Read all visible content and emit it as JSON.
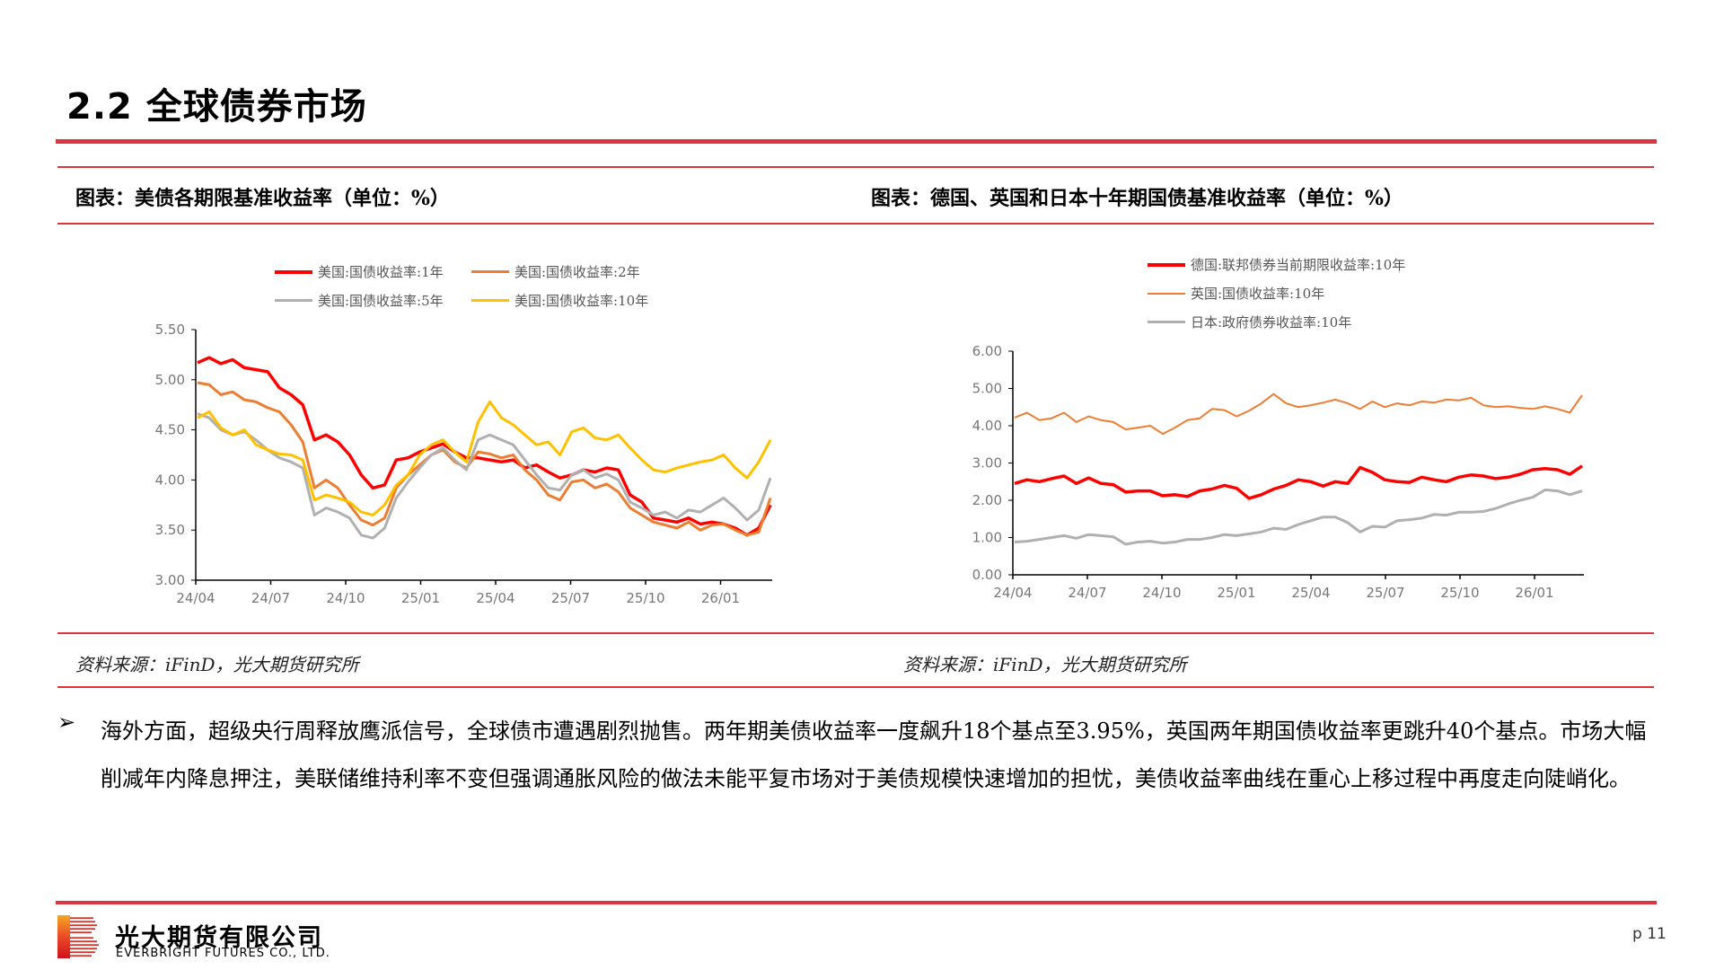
{
  "page": {
    "title": "2.2 全球债券市场",
    "page_number": "p 11",
    "accent_color": "#d9363e"
  },
  "figures": {
    "left": {
      "title": "图表：美债各期限基准收益率（单位：%）",
      "source": "资料来源：iFinD，光大期货研究所"
    },
    "right": {
      "title": "图表：德国、英国和日本十年期国债基准收益率（单位：%）",
      "source": "资料来源：iFinD，光大期货研究所"
    }
  },
  "body": {
    "bullet_icon": "➢",
    "paragraph": "海外方面，超级央行周释放鹰派信号，全球债市遭遇剧烈抛售。两年期美债收益率一度飙升18个基点至3.95%，英国两年期国债收益率更跳升40个基点。市场大幅削减年内降息押注，美联储维持利率不变但强调通胀风险的做法未能平复市场对于美债规模快速增加的担忧，美债收益率曲线在重心上移过程中再度走向陡峭化。"
  },
  "footer": {
    "company_cn": "光大期货有限公司",
    "company_en": "EVERBRIGHT FUTURES CO., LTD."
  },
  "chart_data": [
    {
      "type": "line",
      "title": "美债各期限基准收益率（单位：%）",
      "xlabel": "",
      "ylabel": "",
      "ylim": [
        3.0,
        5.5
      ],
      "yticks": [
        "3.00",
        "3.50",
        "4.00",
        "4.50",
        "5.00",
        "5.50"
      ],
      "xticks": [
        "24/04",
        "24/07",
        "24/10",
        "25/01",
        "25/04",
        "25/07",
        "25/10",
        "26/01"
      ],
      "grid": false,
      "legend_position": "top",
      "x_positions_note": "points spaced ~half-month from 24/04 to 26/03",
      "series": [
        {
          "name": "美国:国债收益率:1年",
          "color": "#ff0000",
          "values": [
            5.17,
            5.22,
            5.16,
            5.2,
            5.12,
            5.1,
            5.08,
            4.92,
            4.85,
            4.75,
            4.4,
            4.45,
            4.38,
            4.25,
            4.05,
            3.92,
            3.95,
            4.2,
            4.22,
            4.28,
            4.32,
            4.36,
            4.28,
            4.22,
            4.22,
            4.2,
            4.18,
            4.2,
            4.12,
            4.15,
            4.08,
            4.02,
            4.05,
            4.1,
            4.08,
            4.12,
            4.1,
            3.85,
            3.78,
            3.62,
            3.6,
            3.58,
            3.62,
            3.56,
            3.58,
            3.56,
            3.52,
            3.45,
            3.52,
            3.75
          ]
        },
        {
          "name": "美国:国债收益率:2年",
          "color": "#ed7d31",
          "values": [
            4.97,
            4.95,
            4.85,
            4.88,
            4.8,
            4.78,
            4.72,
            4.68,
            4.55,
            4.38,
            3.92,
            4.0,
            3.92,
            3.75,
            3.6,
            3.55,
            3.62,
            3.92,
            4.05,
            4.15,
            4.25,
            4.3,
            4.18,
            4.12,
            4.28,
            4.26,
            4.22,
            4.25,
            4.1,
            4.0,
            3.85,
            3.8,
            3.98,
            4.0,
            3.92,
            3.96,
            3.88,
            3.72,
            3.65,
            3.58,
            3.55,
            3.52,
            3.58,
            3.5,
            3.55,
            3.56,
            3.5,
            3.45,
            3.48,
            3.82
          ]
        },
        {
          "name": "美国:国债收益率:5年",
          "color": "#b0b0b0",
          "values": [
            4.66,
            4.62,
            4.5,
            4.45,
            4.48,
            4.4,
            4.3,
            4.22,
            4.18,
            4.12,
            3.65,
            3.72,
            3.68,
            3.62,
            3.45,
            3.42,
            3.52,
            3.82,
            3.98,
            4.12,
            4.25,
            4.32,
            4.2,
            4.1,
            4.4,
            4.45,
            4.4,
            4.35,
            4.2,
            4.05,
            3.92,
            3.9,
            4.05,
            4.1,
            4.02,
            4.06,
            4.0,
            3.78,
            3.72,
            3.65,
            3.68,
            3.62,
            3.7,
            3.68,
            3.75,
            3.82,
            3.72,
            3.6,
            3.7,
            4.02
          ]
        },
        {
          "name": "美国:国债收益率:10年",
          "color": "#ffc000",
          "values": [
            4.62,
            4.68,
            4.52,
            4.45,
            4.5,
            4.35,
            4.3,
            4.26,
            4.25,
            4.2,
            3.8,
            3.85,
            3.82,
            3.78,
            3.68,
            3.65,
            3.75,
            3.95,
            4.05,
            4.25,
            4.35,
            4.4,
            4.28,
            4.18,
            4.58,
            4.78,
            4.62,
            4.55,
            4.45,
            4.35,
            4.38,
            4.25,
            4.48,
            4.52,
            4.42,
            4.4,
            4.45,
            4.32,
            4.2,
            4.1,
            4.08,
            4.12,
            4.15,
            4.18,
            4.2,
            4.25,
            4.12,
            4.02,
            4.18,
            4.4
          ]
        }
      ]
    },
    {
      "type": "line",
      "title": "德国、英国和日本十年期国债基准收益率（单位：%）",
      "xlabel": "",
      "ylabel": "",
      "ylim": [
        0.0,
        6.0
      ],
      "yticks": [
        "0.00",
        "1.00",
        "2.00",
        "3.00",
        "4.00",
        "5.00",
        "6.00"
      ],
      "xticks": [
        "24/04",
        "24/07",
        "24/10",
        "25/01",
        "25/04",
        "25/07",
        "25/10",
        "26/01"
      ],
      "grid": false,
      "legend_position": "top-left",
      "series": [
        {
          "name": "德国:联邦债券当前期限收益率:10年",
          "color": "#ff0000",
          "values": [
            2.45,
            2.55,
            2.5,
            2.58,
            2.65,
            2.45,
            2.6,
            2.45,
            2.42,
            2.22,
            2.25,
            2.25,
            2.12,
            2.15,
            2.1,
            2.25,
            2.3,
            2.4,
            2.32,
            2.05,
            2.15,
            2.3,
            2.4,
            2.55,
            2.5,
            2.38,
            2.5,
            2.45,
            2.88,
            2.75,
            2.55,
            2.5,
            2.48,
            2.62,
            2.55,
            2.5,
            2.62,
            2.68,
            2.65,
            2.58,
            2.62,
            2.7,
            2.82,
            2.85,
            2.82,
            2.7,
            2.92
          ]
        },
        {
          "name": "英国:国债收益率:10年",
          "color": "#ed7d31",
          "values": [
            4.22,
            4.35,
            4.15,
            4.2,
            4.35,
            4.1,
            4.25,
            4.15,
            4.1,
            3.9,
            3.95,
            4.0,
            3.78,
            3.95,
            4.15,
            4.2,
            4.45,
            4.42,
            4.25,
            4.4,
            4.6,
            4.85,
            4.6,
            4.5,
            4.55,
            4.62,
            4.7,
            4.6,
            4.45,
            4.65,
            4.5,
            4.6,
            4.55,
            4.65,
            4.62,
            4.7,
            4.68,
            4.75,
            4.55,
            4.5,
            4.52,
            4.48,
            4.45,
            4.52,
            4.45,
            4.35,
            4.82
          ]
        },
        {
          "name": "日本:政府债券收益率:10年",
          "color": "#b0b0b0",
          "values": [
            0.88,
            0.9,
            0.95,
            1.0,
            1.05,
            0.98,
            1.08,
            1.05,
            1.02,
            0.82,
            0.88,
            0.9,
            0.85,
            0.88,
            0.95,
            0.95,
            1.0,
            1.08,
            1.05,
            1.1,
            1.15,
            1.25,
            1.22,
            1.35,
            1.45,
            1.55,
            1.55,
            1.4,
            1.15,
            1.3,
            1.28,
            1.45,
            1.48,
            1.52,
            1.62,
            1.6,
            1.68,
            1.68,
            1.7,
            1.78,
            1.9,
            2.0,
            2.08,
            2.28,
            2.25,
            2.15,
            2.25
          ]
        }
      ]
    }
  ]
}
